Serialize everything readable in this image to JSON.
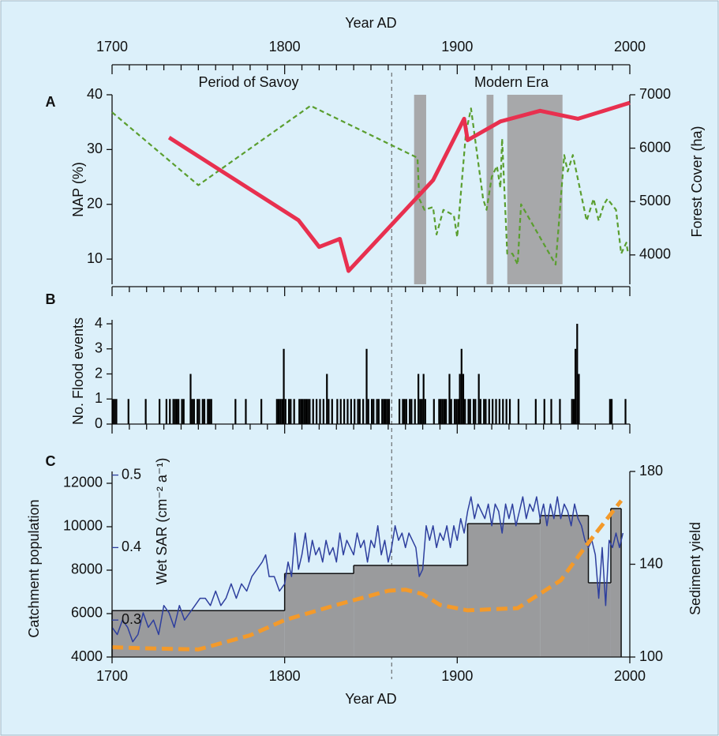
{
  "chart_data": [
    {
      "type": "line",
      "panel": "A",
      "xlabel": "Year AD",
      "xlim": [
        1700,
        2000
      ],
      "xticks": [
        1700,
        1800,
        1900,
        2000
      ],
      "xminorticks": [
        1710,
        1720,
        1730,
        1740,
        1750,
        1760,
        1770,
        1780,
        1790,
        1810,
        1820,
        1830,
        1840,
        1850,
        1860,
        1870,
        1880,
        1890,
        1910,
        1920,
        1930,
        1940,
        1950,
        1960,
        1970,
        1980,
        1990
      ],
      "era_labels": [
        "Period of Savoy",
        "Modern Era"
      ],
      "ylabel": "NAP (%)",
      "ylim": [
        5.4,
        40
      ],
      "yticks": [
        10,
        20,
        30,
        40
      ],
      "y2label": "Forest Cover (ha)",
      "y2lim": [
        3450,
        7000
      ],
      "y2ticks": [
        4000,
        5000,
        6000,
        7000
      ],
      "shaded": [
        [
          1875,
          1882
        ],
        [
          1917,
          1921
        ],
        [
          1929,
          1961
        ]
      ],
      "divider": 1862,
      "series": [
        {
          "color": "#5a9e2f",
          "dashed": true,
          "axis": "y",
          "x": [
            1700,
            1750,
            1815,
            1877,
            1878,
            1881,
            1886,
            1888,
            1892,
            1898,
            1900,
            1905,
            1908,
            1915,
            1917,
            1920,
            1923,
            1925,
            1926,
            1929,
            1932,
            1935,
            1937,
            1957,
            1962,
            1964,
            1967,
            1975,
            1979,
            1982,
            1985,
            1987,
            1992,
            1995,
            1998,
            1999
          ],
          "values": [
            36.8,
            23.5,
            38,
            28.5,
            21,
            19,
            19.5,
            14.5,
            19,
            18,
            14,
            33,
            37.5,
            21,
            19,
            25,
            27,
            23,
            32,
            11,
            11,
            9,
            20,
            9,
            29,
            26,
            29,
            17,
            21,
            17,
            20,
            21,
            19,
            11,
            13,
            11
          ]
        },
        {
          "color": "#e8304f",
          "dashed": false,
          "axis": "y2",
          "x": [
            1733,
            1808,
            1820,
            1832,
            1837,
            1886,
            1904,
            1906,
            1925,
            1948,
            1970,
            2000
          ],
          "values": [
            6200,
            4650,
            4150,
            4300,
            3700,
            5400,
            6550,
            6150,
            6500,
            6700,
            6550,
            6850
          ]
        }
      ]
    },
    {
      "type": "bar",
      "panel": "B",
      "xlim": [
        1700,
        2000
      ],
      "xminorticks": [
        1710,
        1720,
        1730,
        1740,
        1750,
        1760,
        1770,
        1780,
        1790,
        1810,
        1820,
        1830,
        1840,
        1850,
        1860,
        1870,
        1880,
        1890,
        1910,
        1920,
        1930,
        1940,
        1950,
        1960,
        1970,
        1980,
        1990
      ],
      "xticks": [
        1700,
        1800,
        1900,
        2000
      ],
      "ylabel": "No. Flood events",
      "ylim": [
        0,
        4.3
      ],
      "yticks": [
        0,
        1,
        2,
        3,
        4
      ],
      "color": "#000000",
      "x": [
        1700,
        1701,
        1702,
        1709,
        1719,
        1727,
        1731,
        1733,
        1735,
        1736,
        1737,
        1738,
        1740,
        1741,
        1745,
        1746,
        1747,
        1749,
        1750,
        1752,
        1753,
        1755,
        1756,
        1757,
        1771,
        1777,
        1786,
        1795,
        1796,
        1797,
        1798,
        1799,
        1800,
        1802,
        1803,
        1805,
        1808,
        1809,
        1810,
        1811,
        1812,
        1813,
        1814,
        1816,
        1818,
        1820,
        1822,
        1824,
        1825,
        1827,
        1830,
        1832,
        1834,
        1836,
        1838,
        1840,
        1842,
        1843,
        1845,
        1847,
        1848,
        1850,
        1851,
        1853,
        1854,
        1856,
        1857,
        1858,
        1859,
        1860,
        1866,
        1868,
        1869,
        1870,
        1872,
        1873,
        1875,
        1877,
        1878,
        1879,
        1880,
        1881,
        1886,
        1889,
        1890,
        1891,
        1892,
        1893,
        1895,
        1896,
        1898,
        1899,
        1900,
        1901,
        1902,
        1903,
        1904,
        1906,
        1907,
        1909,
        1910,
        1912,
        1913,
        1915,
        1916,
        1918,
        1920,
        1922,
        1924,
        1926,
        1928,
        1930,
        1935,
        1945,
        1950,
        1954,
        1959,
        1966,
        1967,
        1968,
        1969,
        1970,
        1988,
        1989,
        1997
      ],
      "values": [
        1,
        1,
        1,
        1,
        1,
        1,
        1,
        1,
        1,
        1,
        1,
        1,
        1,
        1,
        2,
        1,
        1,
        1,
        1,
        1,
        1,
        1,
        1,
        1,
        1,
        1,
        1,
        1,
        1,
        1,
        1,
        3,
        1,
        1,
        1,
        1,
        1,
        1,
        1,
        1,
        1,
        1,
        1,
        1,
        1,
        1,
        1,
        2,
        1,
        1,
        1,
        1,
        1,
        1,
        1,
        1,
        1,
        1,
        1,
        3,
        1,
        1,
        1,
        1,
        1,
        1,
        1,
        1,
        1,
        1,
        1,
        1,
        1,
        1,
        1,
        1,
        1,
        2,
        1,
        1,
        2,
        1,
        1,
        1,
        1,
        1,
        1,
        1,
        2,
        1,
        1,
        1,
        1,
        2,
        3,
        2,
        1,
        1,
        1,
        1,
        1,
        2,
        1,
        1,
        1,
        1,
        1,
        1,
        1,
        1,
        1,
        1,
        1,
        1,
        1,
        1,
        1,
        1,
        1,
        3,
        4,
        2,
        1,
        1,
        1
      ]
    },
    {
      "type": "combo",
      "panel": "C",
      "xlabel": "Year AD",
      "xlim": [
        1700,
        2000
      ],
      "xticks": [
        1700,
        1800,
        1900,
        2000
      ],
      "ylabel": "Catchment population",
      "ylim": [
        4000,
        12545
      ],
      "yticks": [
        4000,
        6000,
        8000,
        10000,
        12000
      ],
      "ycolor": "#f39a2b",
      "y3label": "Wet SAR (cm⁻² a⁻¹)",
      "y3lim": [
        0.249,
        0.505
      ],
      "y3ticks": [
        0.3,
        0.4,
        0.5
      ],
      "y3color": "#2e3f9e",
      "y2label": "Sediment yield",
      "y2lim": [
        100,
        180
      ],
      "y2ticks": [
        100,
        140,
        180
      ],
      "y2color": "#7d7e80",
      "sediment": {
        "color": "#9a9b9d",
        "bins": [
          1700,
          1800,
          1840,
          1906,
          1948,
          1976,
          1989,
          1995
        ],
        "values": [
          120,
          136,
          139.5,
          157.5,
          161,
          132,
          164
        ]
      },
      "series": [
        {
          "axis": "y3",
          "color": "#2e3f9e",
          "dashed": false,
          "x": [
            1700,
            1703,
            1706,
            1709,
            1712,
            1715,
            1718,
            1721,
            1724,
            1727,
            1730,
            1733,
            1736,
            1739,
            1742,
            1745,
            1748,
            1751,
            1754,
            1757,
            1760,
            1763,
            1766,
            1769,
            1772,
            1775,
            1778,
            1781,
            1784,
            1787,
            1789,
            1791,
            1794,
            1797,
            1800,
            1802,
            1804,
            1806,
            1808,
            1810,
            1812,
            1814,
            1816,
            1818,
            1820,
            1822,
            1824,
            1826,
            1828,
            1830,
            1832,
            1834,
            1836,
            1838,
            1840,
            1842,
            1844,
            1846,
            1848,
            1850,
            1852,
            1854,
            1856,
            1858,
            1860,
            1862,
            1864,
            1866,
            1868,
            1870,
            1872,
            1874,
            1876,
            1878,
            1880,
            1882,
            1884,
            1886,
            1888,
            1890,
            1892,
            1894,
            1896,
            1898,
            1900,
            1902,
            1904,
            1906,
            1908,
            1910,
            1912,
            1914,
            1916,
            1918,
            1920,
            1922,
            1924,
            1926,
            1928,
            1930,
            1932,
            1934,
            1936,
            1938,
            1940,
            1942,
            1944,
            1946,
            1948,
            1950,
            1952,
            1954,
            1956,
            1958,
            1960,
            1962,
            1964,
            1966,
            1968,
            1970,
            1972,
            1974,
            1976,
            1978,
            1980,
            1982,
            1984,
            1986,
            1988,
            1990,
            1992,
            1994,
            1996
          ],
          "values": [
            0.29,
            0.28,
            0.3,
            0.29,
            0.27,
            0.28,
            0.31,
            0.29,
            0.3,
            0.28,
            0.32,
            0.31,
            0.29,
            0.32,
            0.3,
            0.31,
            0.32,
            0.33,
            0.33,
            0.32,
            0.34,
            0.32,
            0.33,
            0.35,
            0.33,
            0.35,
            0.34,
            0.36,
            0.37,
            0.38,
            0.39,
            0.36,
            0.36,
            0.34,
            0.35,
            0.38,
            0.36,
            0.42,
            0.37,
            0.39,
            0.42,
            0.38,
            0.41,
            0.39,
            0.4,
            0.38,
            0.41,
            0.39,
            0.4,
            0.38,
            0.42,
            0.39,
            0.41,
            0.4,
            0.39,
            0.42,
            0.4,
            0.41,
            0.38,
            0.41,
            0.4,
            0.43,
            0.39,
            0.41,
            0.38,
            0.4,
            0.43,
            0.41,
            0.42,
            0.4,
            0.42,
            0.41,
            0.4,
            0.36,
            0.37,
            0.43,
            0.41,
            0.43,
            0.4,
            0.42,
            0.41,
            0.43,
            0.4,
            0.43,
            0.41,
            0.44,
            0.42,
            0.45,
            0.47,
            0.44,
            0.46,
            0.45,
            0.44,
            0.46,
            0.43,
            0.46,
            0.45,
            0.42,
            0.46,
            0.44,
            0.46,
            0.43,
            0.45,
            0.47,
            0.44,
            0.46,
            0.45,
            0.47,
            0.44,
            0.46,
            0.43,
            0.46,
            0.44,
            0.47,
            0.44,
            0.46,
            0.45,
            0.43,
            0.46,
            0.44,
            0.43,
            0.41,
            0.4,
            0.41,
            0.39,
            0.33,
            0.4,
            0.32,
            0.41,
            0.4,
            0.42,
            0.4,
            0.42
          ]
        },
        {
          "axis": "y",
          "color": "#f39a2b",
          "dashed": true,
          "x": [
            1700,
            1720,
            1750,
            1780,
            1800,
            1830,
            1860,
            1870,
            1880,
            1890,
            1906,
            1920,
            1935,
            1960,
            1975,
            1995
          ],
          "values": [
            4450,
            4400,
            4350,
            5000,
            5700,
            6400,
            7050,
            7100,
            6900,
            6400,
            6150,
            6200,
            6250,
            7530,
            9160,
            11200
          ]
        }
      ]
    }
  ]
}
